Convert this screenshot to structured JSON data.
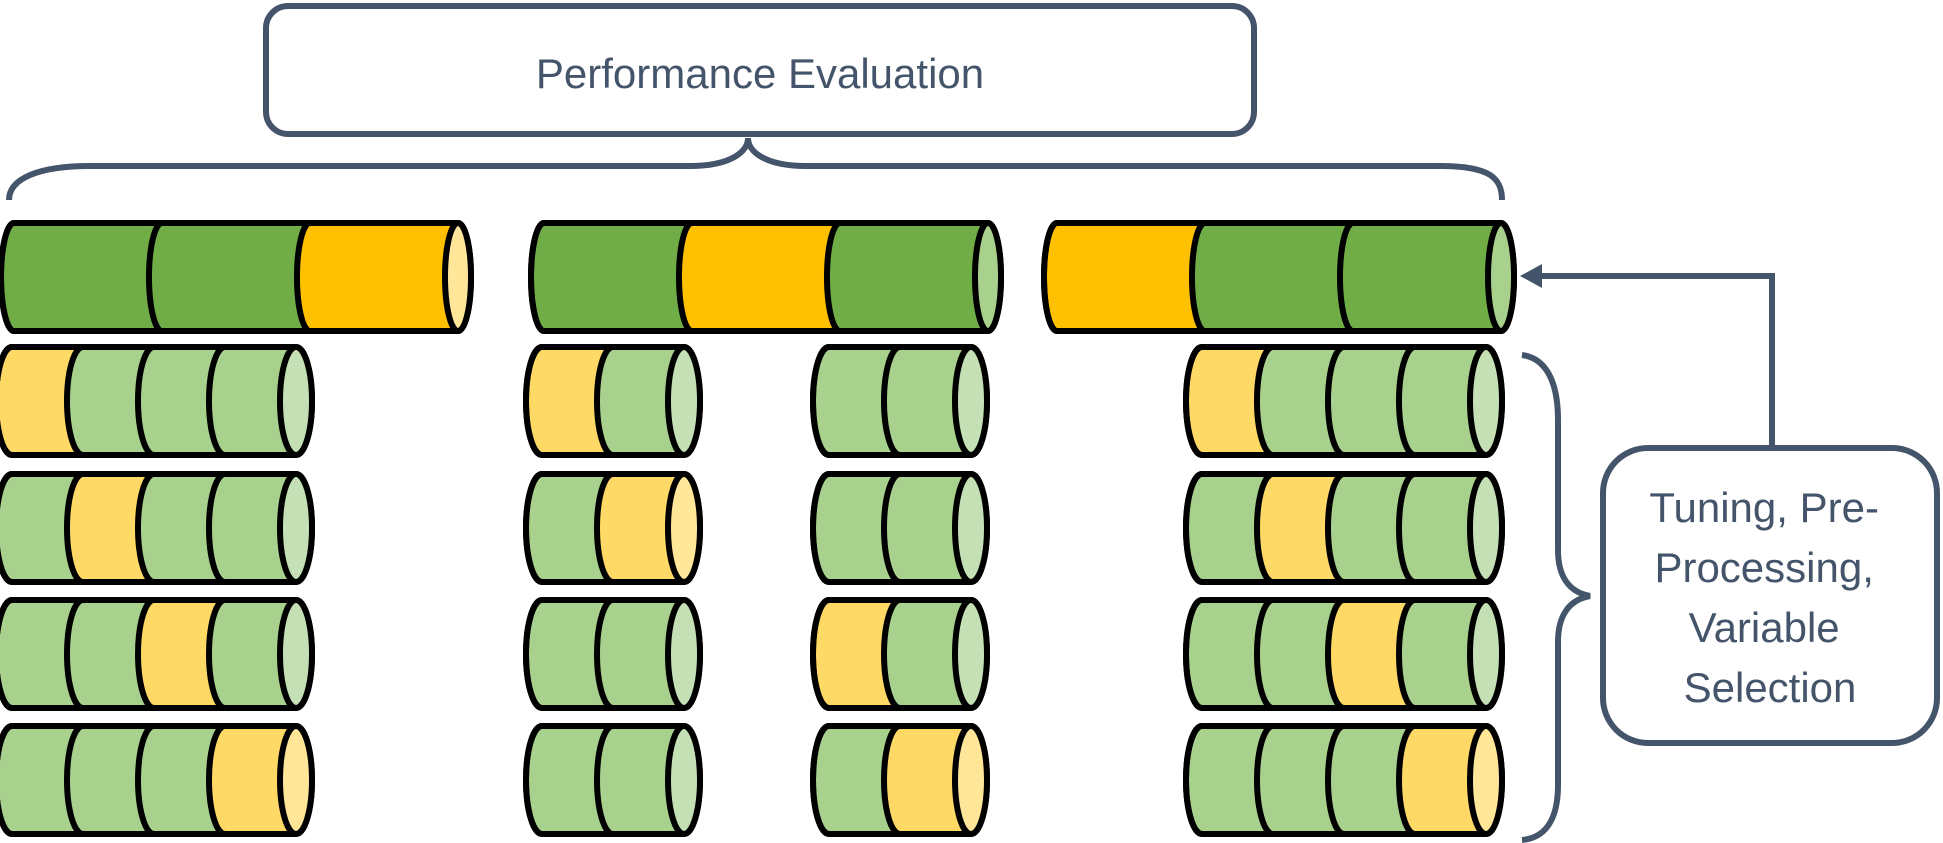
{
  "top_box": {
    "label": "Performance Evaluation"
  },
  "side_box": {
    "lines": [
      "Tuning, Pre-",
      "Processing,",
      "Variable",
      "Selection"
    ]
  },
  "colors": {
    "outline": "#000000",
    "connector": "#44546a",
    "label_text": "#44546a",
    "green_dark": "#70ad47",
    "green_dark_cap": "#a9d18e",
    "orange": "#ffc000",
    "orange_cap": "#ffe699",
    "green_light": "#a9d18e",
    "green_light_cap": "#c5e0b4",
    "yellow_light": "#ffd966",
    "yellow_light_cap": "#ffe699"
  },
  "outer_folds": [
    {
      "segments": [
        "green",
        "green",
        "orange"
      ]
    },
    {
      "segments": [
        "green",
        "orange",
        "green"
      ]
    },
    {
      "segments": [
        "orange",
        "green",
        "green"
      ]
    }
  ],
  "inner_folds": [
    {
      "rows": [
        [
          "yellow",
          "green",
          "green",
          "green"
        ],
        [
          "green",
          "yellow",
          "green",
          "green"
        ],
        [
          "green",
          "green",
          "yellow",
          "green"
        ],
        [
          "green",
          "green",
          "green",
          "yellow"
        ]
      ]
    },
    {
      "rows": [
        [
          "yellow",
          "green"
        ],
        [
          "green",
          "yellow"
        ],
        [
          "green",
          "green"
        ],
        [
          "green",
          "green"
        ]
      ]
    },
    {
      "rows": [
        [
          "green",
          "green"
        ],
        [
          "green",
          "green"
        ],
        [
          "yellow",
          "green"
        ],
        [
          "green",
          "yellow"
        ]
      ]
    },
    {
      "rows": [
        [
          "yellow",
          "green",
          "green",
          "green"
        ],
        [
          "green",
          "yellow",
          "green",
          "green"
        ],
        [
          "green",
          "green",
          "yellow",
          "green"
        ],
        [
          "green",
          "green",
          "green",
          "yellow"
        ]
      ]
    }
  ]
}
